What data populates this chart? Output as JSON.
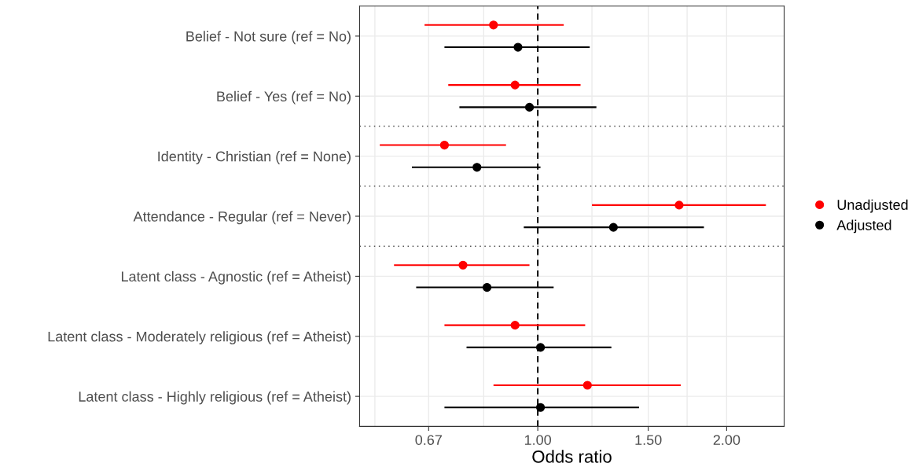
{
  "chart_data": {
    "type": "scatter",
    "orientation": "horizontal",
    "xlabel": "Odds ratio",
    "log": "x",
    "categories": [
      "Belief - Not sure (ref = No)",
      "Belief - Yes (ref = No)",
      "Identity - Christian (ref = None)",
      "Attendance - Regular (ref = Never)",
      "Latent class - Agnostic (ref = Atheist)",
      "Latent class - Moderately religious (ref = Atheist)",
      "Latent class - Highly religious (ref = Atheist)"
    ],
    "series": [
      {
        "name": "Unadjusted",
        "color": "#ff0000",
        "values": [
          0.85,
          0.92,
          0.71,
          1.68,
          0.76,
          0.92,
          1.2
        ],
        "errors": [
          [
            0.66,
            1.1
          ],
          [
            0.72,
            1.17
          ],
          [
            0.56,
            0.89
          ],
          [
            1.22,
            2.31
          ],
          [
            0.59,
            0.97
          ],
          [
            0.71,
            1.19
          ],
          [
            0.85,
            1.69
          ]
        ]
      },
      {
        "name": "Adjusted",
        "color": "#000000",
        "values": [
          0.93,
          0.97,
          0.8,
          1.32,
          0.83,
          1.01,
          1.01
        ],
        "errors": [
          [
            0.71,
            1.21
          ],
          [
            0.75,
            1.24
          ],
          [
            0.63,
            1.01
          ],
          [
            0.95,
            1.84
          ],
          [
            0.64,
            1.06
          ],
          [
            0.77,
            1.31
          ],
          [
            0.71,
            1.45
          ]
        ]
      }
    ],
    "xlim": [
      0.52,
      2.47
    ],
    "xticks": [
      {
        "value": 0.55,
        "label": null
      },
      {
        "value": 0.67,
        "label": "0.67"
      },
      {
        "value": 0.82,
        "label": null
      },
      {
        "value": 1,
        "label": "1.00"
      },
      {
        "value": 1.22,
        "label": null
      },
      {
        "value": 1.5,
        "label": "1.50"
      },
      {
        "value": 1.73,
        "label": null
      },
      {
        "value": 2,
        "label": "2.00"
      }
    ],
    "ref_lines": [
      {
        "axis": "x",
        "value": 1,
        "color": "#000000",
        "line_style": "dashed"
      }
    ],
    "grid": true,
    "legend": "right",
    "marker": "circle"
  }
}
